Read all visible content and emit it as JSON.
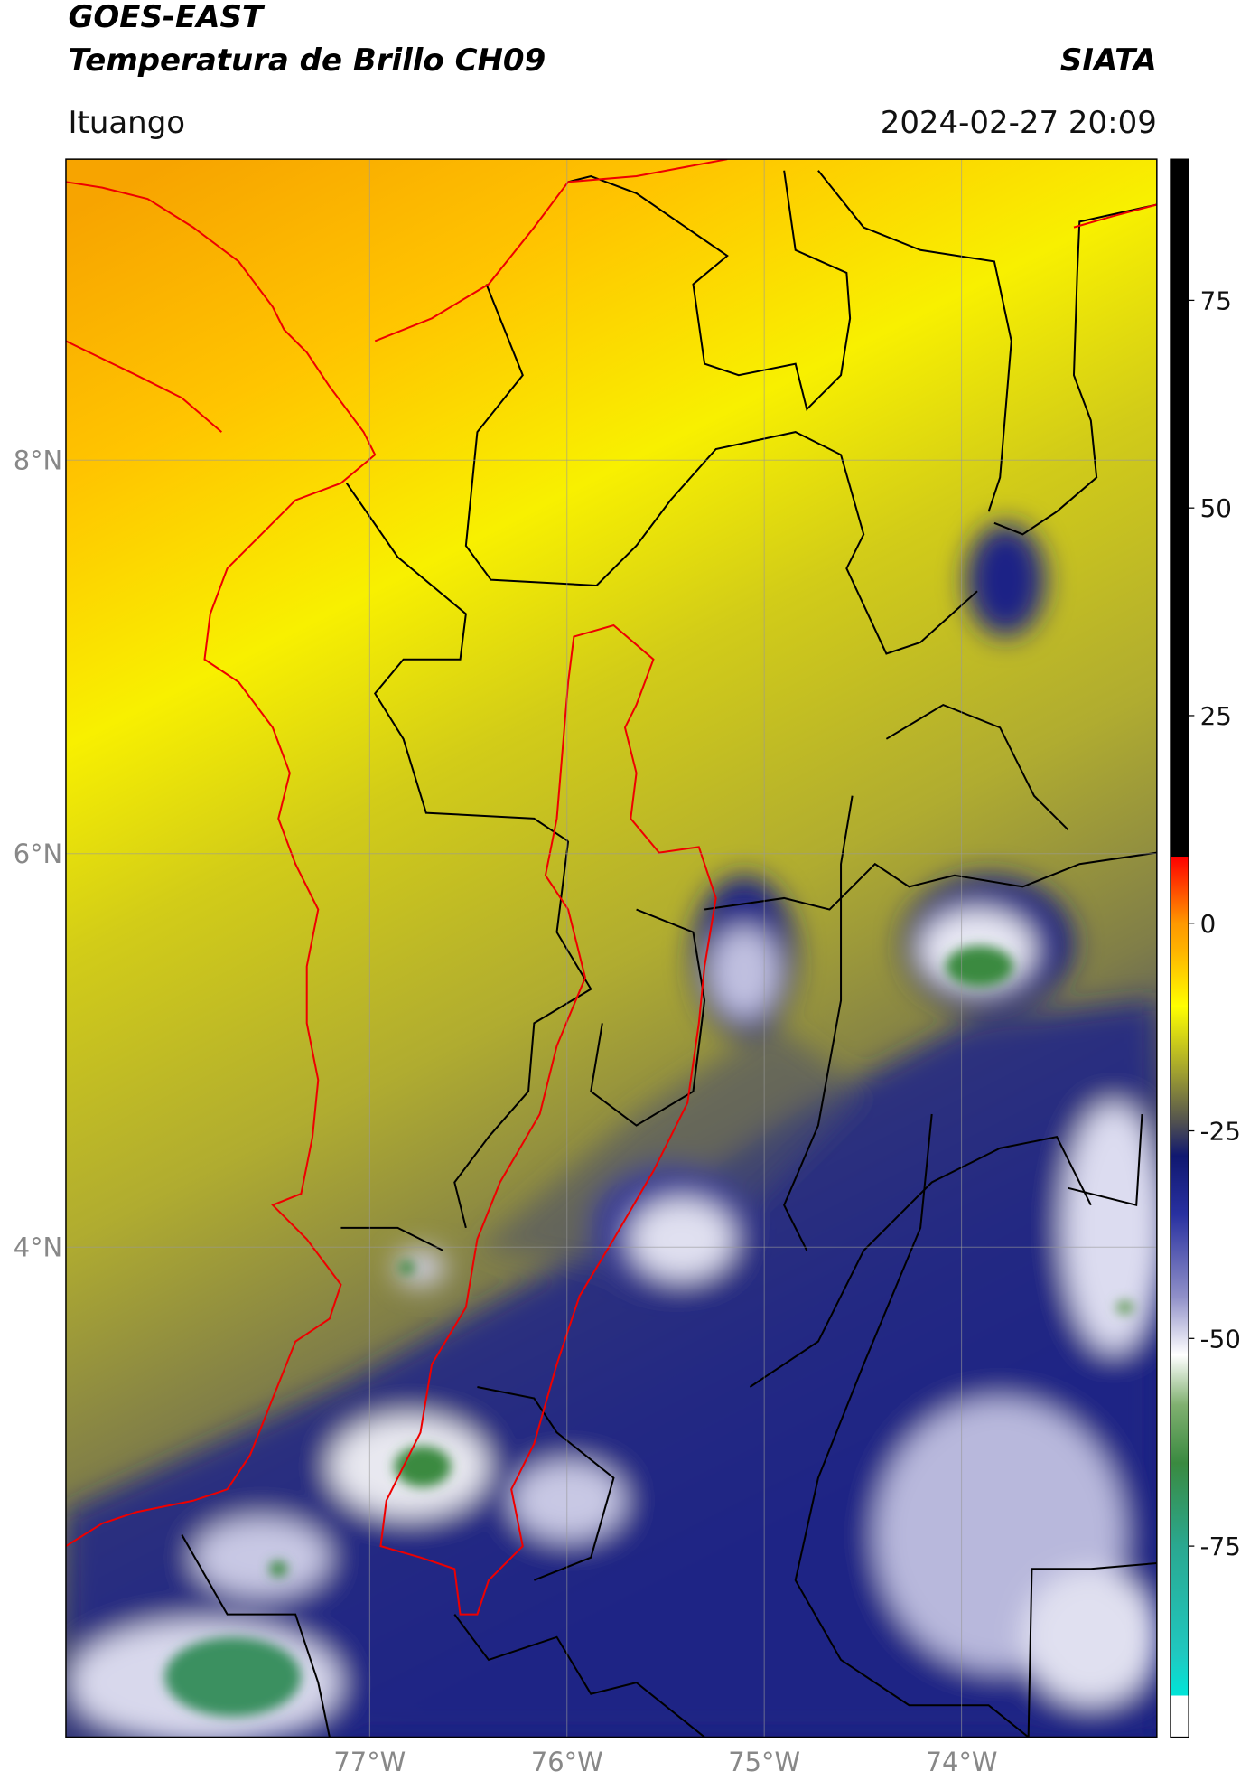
{
  "header": {
    "title": "GOES-EAST",
    "subtitle": "Temperatura de Brillo CH09",
    "source": "SIATA",
    "location": "Ituango",
    "datetime": "2024-02-27 20:09"
  },
  "map": {
    "lat_range": [
      1.51,
      9.53
    ],
    "lon_range": [
      -78.54,
      -73.01
    ],
    "grid": true,
    "lat_ticks": [
      {
        "value": 8,
        "label": "8°N"
      },
      {
        "value": 6,
        "label": "6°N"
      },
      {
        "value": 4,
        "label": "4°N"
      }
    ],
    "lon_ticks": [
      {
        "value": -77,
        "label": "77°W"
      },
      {
        "value": -76,
        "label": "76°W"
      },
      {
        "value": -75,
        "label": "75°W"
      },
      {
        "value": -74,
        "label": "74°W"
      }
    ]
  },
  "colorbar": {
    "range": [
      -98,
      92
    ],
    "ticks": [
      75,
      50,
      25,
      0,
      -25,
      -50,
      -75
    ],
    "stops": [
      [
        -98,
        "#ffffff"
      ],
      [
        -93,
        "#ffffff"
      ],
      [
        -93,
        "#00e5d8"
      ],
      [
        -88,
        "#20c8c0"
      ],
      [
        -75,
        "#2aa890"
      ],
      [
        -65,
        "#3a8a40"
      ],
      [
        -58,
        "#80b070"
      ],
      [
        -52,
        "#ffffff"
      ],
      [
        -45,
        "#9090c8"
      ],
      [
        -35,
        "#2830a0"
      ],
      [
        -28,
        "#101870"
      ],
      [
        -24,
        "#505050"
      ],
      [
        -18,
        "#a0a030"
      ],
      [
        -10,
        "#ffff00"
      ],
      [
        -3,
        "#ffb000"
      ],
      [
        0,
        "#ff9800"
      ],
      [
        8,
        "#ff0000"
      ],
      [
        8,
        "#000000"
      ],
      [
        92,
        "#000000"
      ]
    ]
  }
}
